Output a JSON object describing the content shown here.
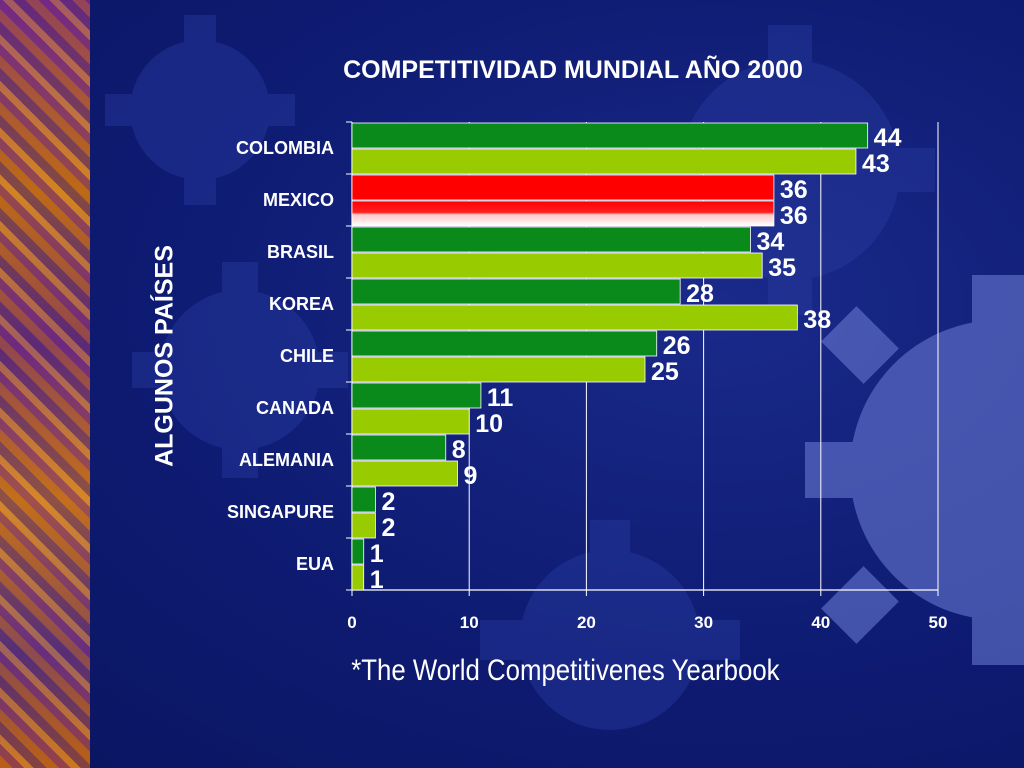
{
  "slide": {
    "source_note": "*The World Competitivenes Yearbook"
  },
  "colors": {
    "background": "#0e1b72",
    "series_dark": "#0a8a1a",
    "series_light": "#99cc00",
    "highlight": "#ff0000",
    "text": "#ffffff"
  },
  "chart_data": {
    "type": "bar",
    "orientation": "horizontal",
    "title": "COMPETITIVIDAD MUNDIAL AÑO 2000",
    "ylabel": "ALGUNOS PAÍSES",
    "xlabel": "",
    "categories": [
      "COLOMBIA",
      "MEXICO",
      "BRASIL",
      "KOREA",
      "CHILE",
      "CANADA",
      "ALEMANIA",
      "SINGAPURE",
      "EUA"
    ],
    "series": [
      {
        "values": [
          44,
          36,
          34,
          28,
          26,
          11,
          8,
          2,
          1
        ]
      },
      {
        "values": [
          43,
          36,
          35,
          38,
          25,
          10,
          9,
          2,
          1
        ]
      }
    ],
    "highlight_category": "MEXICO",
    "xlim": [
      0,
      50
    ],
    "xticks": [
      0,
      10,
      20,
      30,
      40,
      50
    ],
    "grid": true,
    "legend": "none"
  }
}
